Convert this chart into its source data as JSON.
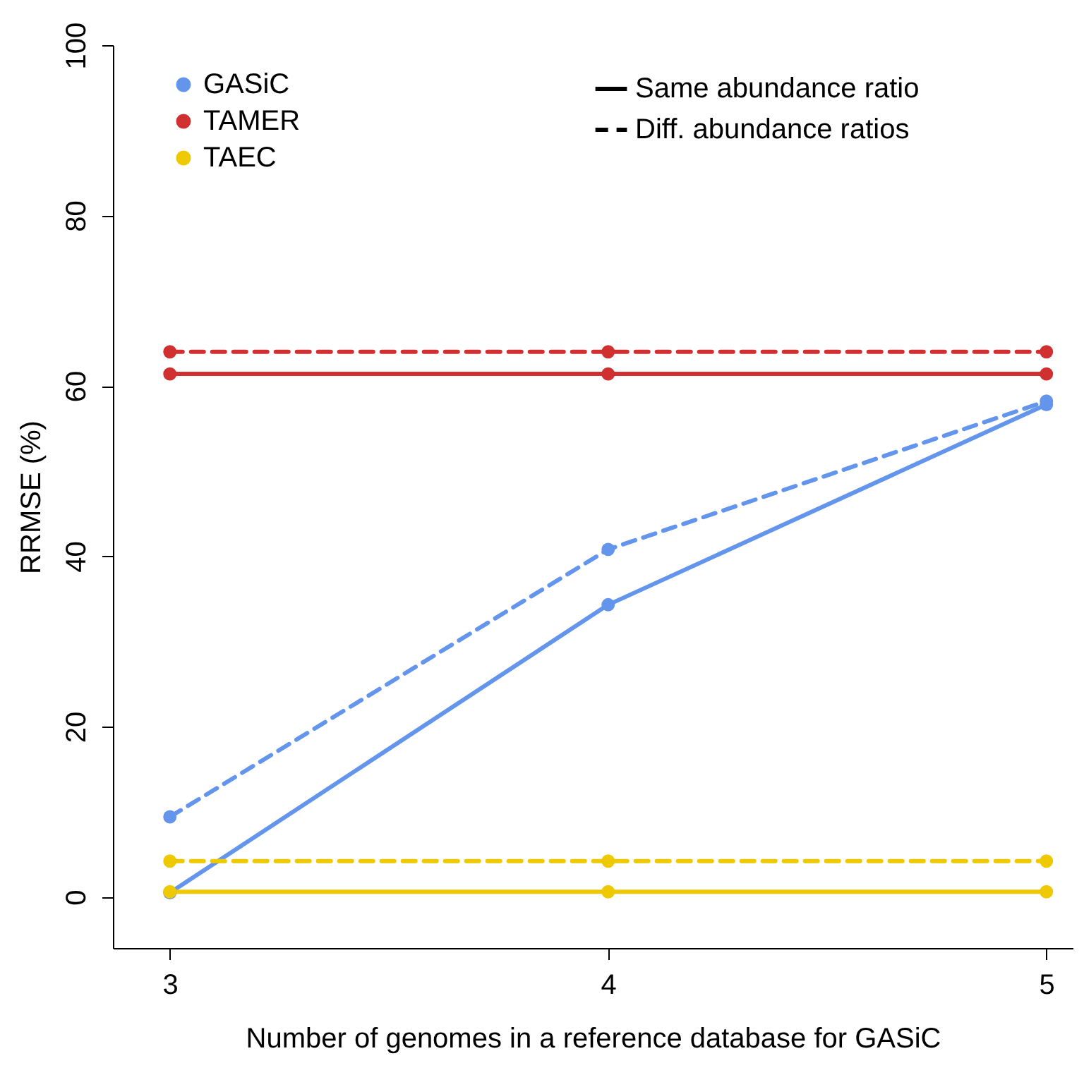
{
  "chart_data": {
    "type": "line",
    "xlabel": "Number of genomes in a reference database for GASiC",
    "ylabel": "RRMSE (%)",
    "x": [
      3,
      4,
      5
    ],
    "xlim": [
      2.87,
      5.06
    ],
    "xticks": [
      3,
      4,
      5
    ],
    "ylim": [
      -6,
      100
    ],
    "yticks": [
      0,
      20,
      40,
      60,
      80,
      100
    ],
    "marker": "circle",
    "legend": "top",
    "grid": false,
    "annotations": [
      "Same abundance ratio",
      "Diff. abundance ratios"
    ],
    "series": [
      {
        "name": "GASiC",
        "color": "#6495ed",
        "line_style": "solid",
        "values": [
          0.5,
          34.3,
          57.8
        ]
      },
      {
        "color": "#6495ed",
        "line_style": "dashed",
        "values": [
          9.4,
          40.8,
          58.2
        ]
      },
      {
        "name": "TAMER",
        "color": "#d03030",
        "line_style": "solid",
        "values": [
          61.4,
          61.4,
          61.4
        ]
      },
      {
        "color": "#d03030",
        "line_style": "dashed",
        "values": [
          64,
          64,
          64
        ]
      },
      {
        "name": "TAEC",
        "color": "#eec900",
        "line_style": "solid",
        "values": [
          0.6,
          0.6,
          0.6
        ]
      },
      {
        "color": "#eec900",
        "line_style": "dashed",
        "values": [
          4.2,
          4.2,
          4.2
        ]
      }
    ]
  }
}
